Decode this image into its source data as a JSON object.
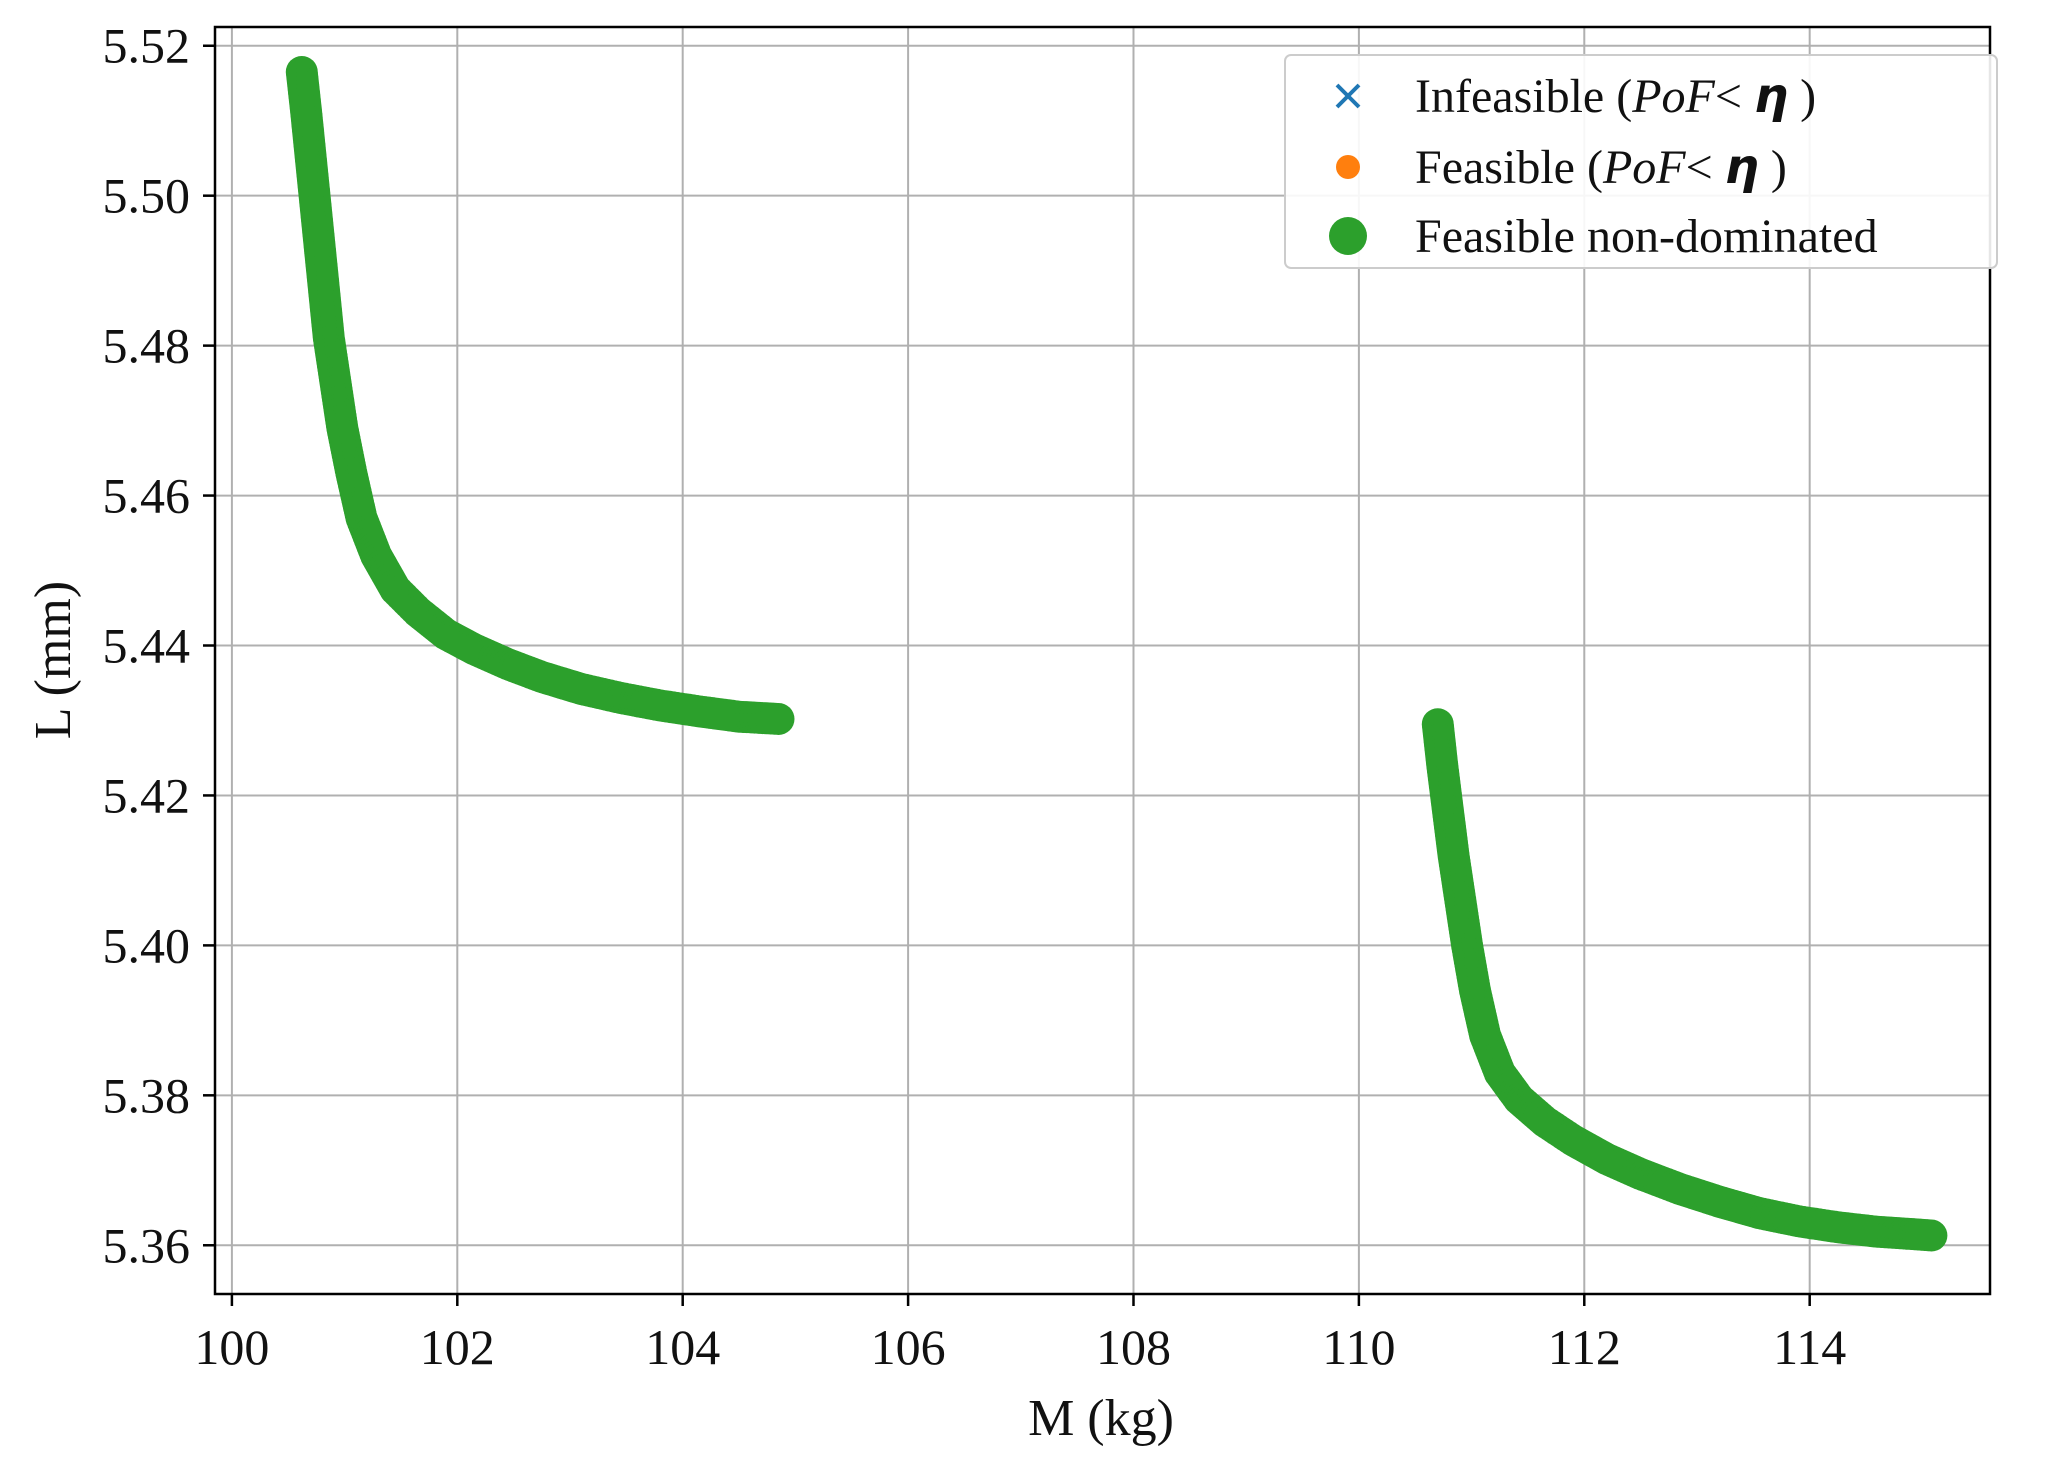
{
  "chart_data": {
    "type": "scatter",
    "title": "",
    "xlabel": "M (kg)",
    "ylabel": "L (mm)",
    "xlim": [
      99.85,
      115.6
    ],
    "ylim": [
      5.3535,
      5.5225
    ],
    "x_ticks": [
      100,
      102,
      104,
      106,
      108,
      110,
      112,
      114
    ],
    "y_ticks": [
      5.36,
      5.38,
      5.4,
      5.42,
      5.44,
      5.46,
      5.48,
      5.5,
      5.52
    ],
    "x_tick_labels": [
      "100",
      "102",
      "104",
      "106",
      "108",
      "110",
      "112",
      "114"
    ],
    "y_tick_labels": [
      "5.36",
      "5.38",
      "5.40",
      "5.42",
      "5.44",
      "5.46",
      "5.48",
      "5.50",
      "5.52"
    ],
    "grid": true,
    "legend_position": "top-right",
    "legend": [
      {
        "label": "Infeasible (PoF< η )",
        "label_parts": [
          "Infeasible (",
          "PoF",
          "< ",
          "η",
          " )"
        ],
        "marker": "x",
        "color": "#1f77b4"
      },
      {
        "label": "Feasible (PoF< η )",
        "label_parts": [
          "Feasible (",
          "PoF",
          "< ",
          "η",
          " )"
        ],
        "marker": "dot",
        "color": "#ff7f0e"
      },
      {
        "label": "Feasible non-dominated",
        "marker": "dot",
        "color": "#2ca02c"
      }
    ],
    "series": [
      {
        "name": "Feasible non-dominated",
        "color": "#2ca02c",
        "segments": [
          {
            "points": [
              [
                100.62,
                5.5165
              ],
              [
                100.66,
                5.511
              ],
              [
                100.7,
                5.505
              ],
              [
                100.74,
                5.499
              ],
              [
                100.78,
                5.493
              ],
              [
                100.82,
                5.487
              ],
              [
                100.86,
                5.481
              ],
              [
                100.92,
                5.475
              ],
              [
                100.98,
                5.469
              ],
              [
                101.06,
                5.463
              ],
              [
                101.15,
                5.457
              ],
              [
                101.28,
                5.452
              ],
              [
                101.45,
                5.4475
              ],
              [
                101.65,
                5.4445
              ],
              [
                101.9,
                5.4415
              ],
              [
                102.15,
                5.4395
              ],
              [
                102.45,
                5.4375
              ],
              [
                102.75,
                5.4358
              ],
              [
                103.1,
                5.4342
              ],
              [
                103.45,
                5.433
              ],
              [
                103.8,
                5.432
              ],
              [
                104.15,
                5.4312
              ],
              [
                104.5,
                5.4305
              ],
              [
                104.85,
                5.4302
              ]
            ]
          },
          {
            "points": [
              [
                110.7,
                5.4295
              ],
              [
                110.74,
                5.424
              ],
              [
                110.79,
                5.418
              ],
              [
                110.84,
                5.412
              ],
              [
                110.9,
                5.406
              ],
              [
                110.96,
                5.4
              ],
              [
                111.03,
                5.394
              ],
              [
                111.12,
                5.388
              ],
              [
                111.25,
                5.383
              ],
              [
                111.42,
                5.3795
              ],
              [
                111.65,
                5.3765
              ],
              [
                111.9,
                5.374
              ],
              [
                112.2,
                5.3715
              ],
              [
                112.5,
                5.3695
              ],
              [
                112.85,
                5.3675
              ],
              [
                113.2,
                5.3658
              ],
              [
                113.55,
                5.3643
              ],
              [
                113.9,
                5.3632
              ],
              [
                114.25,
                5.3624
              ],
              [
                114.6,
                5.3618
              ],
              [
                114.9,
                5.3615
              ],
              [
                115.08,
                5.3613
              ]
            ]
          }
        ]
      }
    ]
  }
}
